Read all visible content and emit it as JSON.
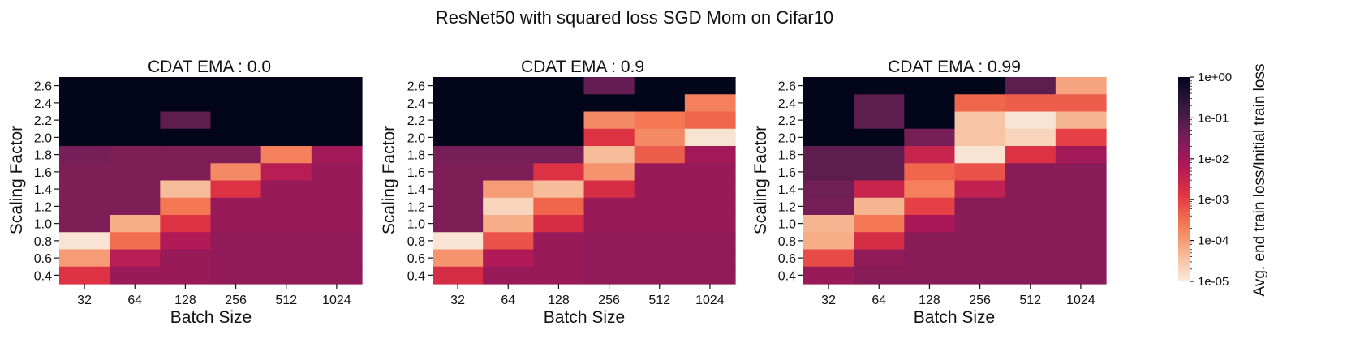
{
  "figure_title": "ResNet50 with squared loss SGD Mom on Cifar10",
  "colorbar": {
    "label": "Avg. end train loss/Initial train loss",
    "ticks": [
      "1e+00",
      "1e-01",
      "1e-02",
      "1e-03",
      "1e-04",
      "1e-05"
    ],
    "log_range": [
      -5,
      0
    ],
    "colormap": [
      "#faebdd",
      "#f6b48f",
      "#f37651",
      "#e13342",
      "#ad1759",
      "#701f57",
      "#35193e",
      "#03051a"
    ]
  },
  "chart_data": [
    {
      "type": "heatmap",
      "title": "CDAT EMA : 0.0",
      "xlabel": "Batch Size",
      "ylabel": "Scaling Factor",
      "x": [
        "32",
        "64",
        "128",
        "256",
        "512",
        "1024"
      ],
      "y": [
        "2.6",
        "2.4",
        "2.2",
        "2.0",
        "1.8",
        "1.6",
        "1.4",
        "1.2",
        "1.0",
        "0.8",
        "0.6",
        "0.4"
      ],
      "log10_values": [
        [
          0,
          0,
          0,
          0,
          0,
          0
        ],
        [
          0,
          0,
          0,
          0,
          0,
          0
        ],
        [
          0,
          0,
          -1.2,
          0,
          0,
          0
        ],
        [
          0,
          0,
          0,
          0,
          0,
          0
        ],
        [
          -1.5,
          -1.6,
          -1.6,
          -1.6,
          -3.7,
          -2.0
        ],
        [
          -1.6,
          -1.6,
          -1.6,
          -3.8,
          -2.3,
          -1.9
        ],
        [
          -1.6,
          -1.6,
          -4.4,
          -2.8,
          -1.9,
          -1.9
        ],
        [
          -1.6,
          -1.6,
          -3.6,
          -1.9,
          -1.9,
          -1.9
        ],
        [
          -1.6,
          -4.2,
          -2.8,
          -1.9,
          -1.9,
          -1.9
        ],
        [
          -4.9,
          -3.5,
          -2.2,
          -1.8,
          -1.8,
          -1.8
        ],
        [
          -4.0,
          -2.3,
          -1.9,
          -1.8,
          -1.8,
          -1.8
        ],
        [
          -2.8,
          -1.9,
          -1.9,
          -1.8,
          -1.8,
          -1.8
        ]
      ]
    },
    {
      "type": "heatmap",
      "title": "CDAT EMA : 0.9",
      "xlabel": "Batch Size",
      "ylabel": "Scaling Factor",
      "x": [
        "32",
        "64",
        "128",
        "256",
        "512",
        "1024"
      ],
      "y": [
        "2.6",
        "2.4",
        "2.2",
        "2.0",
        "1.8",
        "1.6",
        "1.4",
        "1.2",
        "1.0",
        "0.8",
        "0.6",
        "0.4"
      ],
      "log10_values": [
        [
          0,
          0,
          0,
          -1.3,
          0,
          0
        ],
        [
          0,
          0,
          0,
          0,
          0,
          -3.7
        ],
        [
          0,
          0,
          0,
          -3.8,
          -3.6,
          -3.4
        ],
        [
          0,
          0,
          0,
          -2.8,
          -3.8,
          -4.9
        ],
        [
          -1.5,
          -1.5,
          -1.5,
          -4.4,
          -3.3,
          -2.0
        ],
        [
          -1.6,
          -1.6,
          -2.8,
          -3.9,
          -1.9,
          -1.9
        ],
        [
          -1.6,
          -4.0,
          -4.4,
          -2.7,
          -1.9,
          -1.9
        ],
        [
          -1.6,
          -4.7,
          -3.4,
          -1.9,
          -1.9,
          -1.9
        ],
        [
          -1.6,
          -4.2,
          -2.7,
          -1.9,
          -1.9,
          -1.9
        ],
        [
          -4.9,
          -3.2,
          -1.9,
          -1.8,
          -1.8,
          -1.8
        ],
        [
          -3.9,
          -2.2,
          -1.9,
          -1.8,
          -1.8,
          -1.8
        ],
        [
          -2.7,
          -1.9,
          -1.9,
          -1.8,
          -1.8,
          -1.8
        ]
      ]
    },
    {
      "type": "heatmap",
      "title": "CDAT EMA : 0.99",
      "xlabel": "Batch Size",
      "ylabel": "Scaling Factor",
      "x": [
        "32",
        "64",
        "128",
        "256",
        "512",
        "1024"
      ],
      "y": [
        "2.6",
        "2.4",
        "2.2",
        "2.0",
        "1.8",
        "1.6",
        "1.4",
        "1.2",
        "1.0",
        "0.8",
        "0.6",
        "0.4"
      ],
      "log10_values": [
        [
          0,
          0,
          0,
          0,
          -1.2,
          -4.1
        ],
        [
          0,
          -1.2,
          0,
          -3.4,
          -3.3,
          -3.3
        ],
        [
          0,
          -1.2,
          0,
          -4.5,
          -4.9,
          -4.3
        ],
        [
          0,
          0,
          -1.5,
          -4.5,
          -4.7,
          -3.0
        ],
        [
          -1.2,
          -1.2,
          -2.5,
          -4.9,
          -2.8,
          -2.0
        ],
        [
          -1.2,
          -1.2,
          -3.4,
          -3.2,
          -1.7,
          -1.7
        ],
        [
          -1.4,
          -2.5,
          -3.7,
          -2.4,
          -1.7,
          -1.7
        ],
        [
          -1.5,
          -4.3,
          -3.0,
          -1.7,
          -1.7,
          -1.7
        ],
        [
          -4.3,
          -3.6,
          -2.1,
          -1.7,
          -1.7,
          -1.7
        ],
        [
          -4.2,
          -2.7,
          -1.7,
          -1.7,
          -1.7,
          -1.7
        ],
        [
          -3.1,
          -1.8,
          -1.7,
          -1.7,
          -1.7,
          -1.7
        ],
        [
          -1.9,
          -1.7,
          -1.7,
          -1.7,
          -1.7,
          -1.7
        ]
      ]
    }
  ]
}
